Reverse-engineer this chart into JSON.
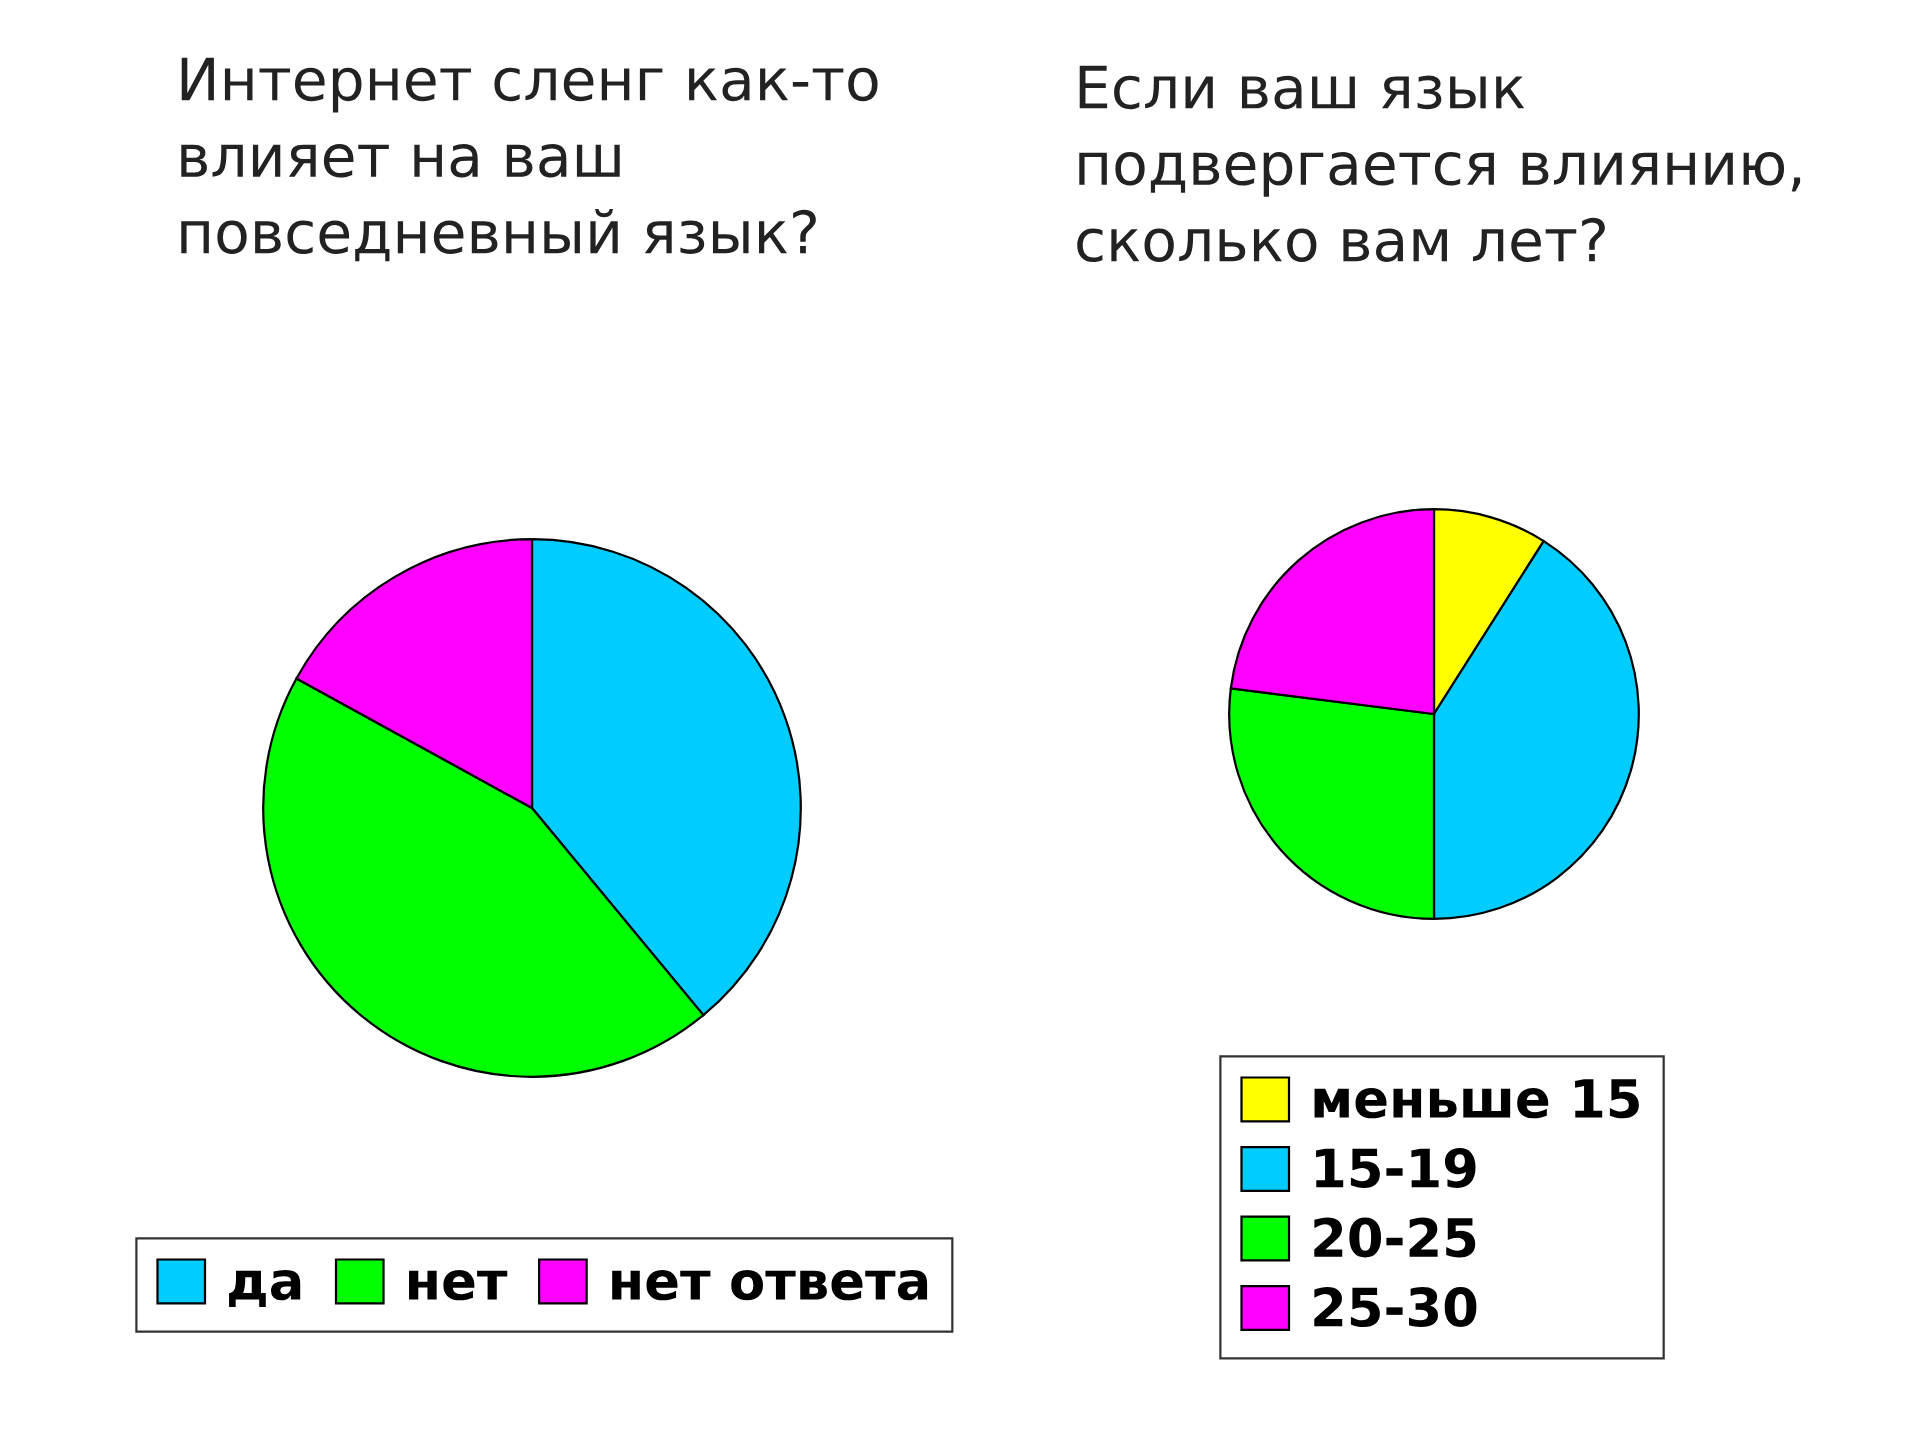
{
  "chart_data": [
    {
      "type": "pie",
      "title": "Интернет сленг как-то\nвлияет на ваш\nповседневный язык?",
      "categories": [
        "да",
        "нет",
        "нет ответа"
      ],
      "values": [
        39,
        44,
        17
      ],
      "colors": [
        "#00ccff",
        "#00ff00",
        "#ff00ff"
      ],
      "legend": "bottom"
    },
    {
      "type": "pie",
      "title": "Если ваш язык\nподвергается влиянию,\nсколько вам лет?",
      "categories": [
        "меньше 15",
        "15-19",
        "20-25",
        "25-30"
      ],
      "values": [
        9,
        41,
        27,
        23
      ],
      "colors": [
        "#ffff00",
        "#00ccff",
        "#00ff00",
        "#ff00ff"
      ],
      "legend": "bottom"
    }
  ]
}
